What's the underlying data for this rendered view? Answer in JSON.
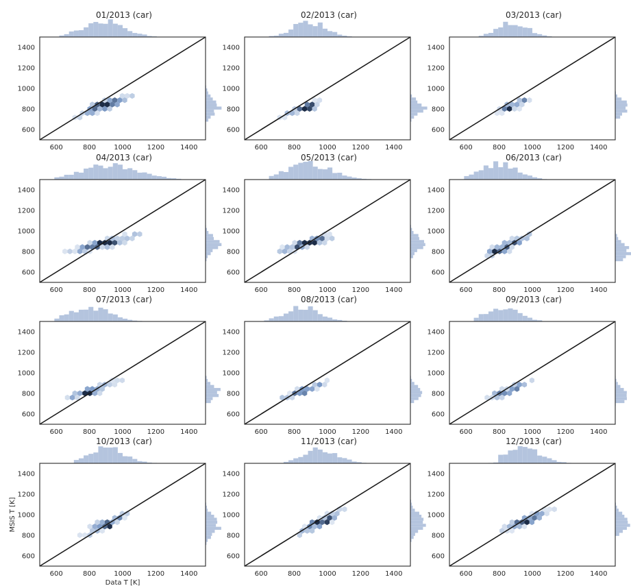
{
  "figure": {
    "xlabel": "Data T [K]",
    "ylabel": "MSIS T [K]",
    "colors": {
      "hist": "#b4c4de",
      "hex_light": "#dfe7f2",
      "hex_mid": "#7e9cc8",
      "hex_dark": "#1c2c47",
      "identity_line": "#1a1a1a",
      "frame": "#262626"
    }
  },
  "chart_data": [
    {
      "type": "hexbin",
      "title": "01/2013 (car)",
      "xlim": [
        500,
        1500
      ],
      "ylim": [
        500,
        1500
      ],
      "xticks": [
        600,
        800,
        1000,
        1200,
        1400
      ],
      "yticks": [
        600,
        800,
        1000,
        1200,
        1400
      ],
      "identity_line": true,
      "marginal_histograms": true,
      "center": [
        900,
        840
      ],
      "density_peak": [
        885,
        830
      ],
      "x_range": [
        650,
        1150
      ],
      "y_range": [
        720,
        1020
      ]
    },
    {
      "type": "hexbin",
      "title": "02/2013 (car)",
      "xlim": [
        500,
        1500
      ],
      "ylim": [
        500,
        1500
      ],
      "xticks": [
        600,
        800,
        1000,
        1200,
        1400
      ],
      "yticks": [
        600,
        800,
        1000,
        1200,
        1400
      ],
      "identity_line": true,
      "marginal_histograms": true,
      "center": [
        860,
        810
      ],
      "density_peak": [
        890,
        815
      ],
      "x_range": [
        700,
        1080
      ],
      "y_range": [
        730,
        950
      ]
    },
    {
      "type": "hexbin",
      "title": "03/2013 (car)",
      "xlim": [
        500,
        1500
      ],
      "ylim": [
        500,
        1500
      ],
      "xticks": [
        600,
        800,
        1000,
        1200,
        1400
      ],
      "yticks": [
        600,
        800,
        1000,
        1200,
        1400
      ],
      "identity_line": true,
      "marginal_histograms": true,
      "center": [
        880,
        840
      ],
      "density_peak": [
        880,
        815
      ],
      "x_range": [
        730,
        1080
      ],
      "y_range": [
        740,
        980
      ]
    },
    {
      "type": "hexbin",
      "title": "04/2013 (car)",
      "xlim": [
        500,
        1500
      ],
      "ylim": [
        500,
        1500
      ],
      "xticks": [
        600,
        800,
        1000,
        1200,
        1400
      ],
      "yticks": [
        600,
        800,
        1000,
        1200,
        1400
      ],
      "identity_line": true,
      "marginal_histograms": true,
      "center": [
        880,
        880
      ],
      "density_peak": [
        930,
        870
      ],
      "x_range": [
        620,
        1280
      ],
      "y_range": [
        760,
        1030
      ]
    },
    {
      "type": "hexbin",
      "title": "05/2013 (car)",
      "xlim": [
        500,
        1500
      ],
      "ylim": [
        500,
        1500
      ],
      "xticks": [
        600,
        800,
        1000,
        1200,
        1400
      ],
      "yticks": [
        600,
        800,
        1000,
        1200,
        1400
      ],
      "identity_line": true,
      "marginal_histograms": true,
      "center": [
        880,
        880
      ],
      "density_peak": [
        890,
        875
      ],
      "x_range": [
        700,
        1250
      ],
      "y_range": [
        780,
        1050
      ]
    },
    {
      "type": "hexbin",
      "title": "06/2013 (car)",
      "xlim": [
        500,
        1500
      ],
      "ylim": [
        500,
        1500
      ],
      "xticks": [
        600,
        800,
        1000,
        1200,
        1400
      ],
      "yticks": [
        600,
        800,
        1000,
        1200,
        1400
      ],
      "identity_line": true,
      "marginal_histograms": true,
      "center": [
        850,
        860
      ],
      "density_peak": [
        800,
        800
      ],
      "x_range": [
        640,
        1070
      ],
      "y_range": [
        740,
        1040
      ]
    },
    {
      "type": "hexbin",
      "title": "07/2013 (car)",
      "xlim": [
        500,
        1500
      ],
      "ylim": [
        500,
        1500
      ],
      "xticks": [
        600,
        800,
        1000,
        1200,
        1400
      ],
      "yticks": [
        600,
        800,
        1000,
        1200,
        1400
      ],
      "identity_line": true,
      "marginal_histograms": true,
      "center": [
        820,
        830
      ],
      "density_peak": [
        800,
        810
      ],
      "x_range": [
        620,
        1080
      ],
      "y_range": [
        740,
        990
      ]
    },
    {
      "type": "hexbin",
      "title": "08/2013 (car)",
      "xlim": [
        500,
        1500
      ],
      "ylim": [
        500,
        1500
      ],
      "xticks": [
        600,
        800,
        1000,
        1200,
        1400
      ],
      "yticks": [
        600,
        800,
        1000,
        1200,
        1400
      ],
      "identity_line": true,
      "marginal_histograms": true,
      "center": [
        860,
        830
      ],
      "density_peak": [
        850,
        815
      ],
      "x_range": [
        660,
        1060
      ],
      "y_range": [
        750,
        970
      ]
    },
    {
      "type": "hexbin",
      "title": "09/2013 (car)",
      "xlim": [
        500,
        1500
      ],
      "ylim": [
        500,
        1500
      ],
      "xticks": [
        600,
        800,
        1000,
        1200,
        1400
      ],
      "yticks": [
        600,
        800,
        1000,
        1200,
        1400
      ],
      "identity_line": true,
      "marginal_histograms": true,
      "center": [
        860,
        830
      ],
      "density_peak": [
        820,
        790
      ],
      "x_range": [
        700,
        1080
      ],
      "y_range": [
        740,
        990
      ]
    },
    {
      "type": "hexbin",
      "title": "10/2013 (car)",
      "xlim": [
        500,
        1500
      ],
      "ylim": [
        500,
        1500
      ],
      "xticks": [
        600,
        800,
        1000,
        1200,
        1400
      ],
      "yticks": [
        600,
        800,
        1000,
        1200,
        1400
      ],
      "identity_line": true,
      "marginal_histograms": true,
      "center": [
        900,
        910
      ],
      "density_peak": [
        900,
        900
      ],
      "x_range": [
        750,
        1180
      ],
      "y_range": [
        760,
        1080
      ]
    },
    {
      "type": "hexbin",
      "title": "11/2013 (car)",
      "xlim": [
        500,
        1500
      ],
      "ylim": [
        500,
        1500
      ],
      "xticks": [
        600,
        800,
        1000,
        1200,
        1400
      ],
      "yticks": [
        600,
        800,
        1000,
        1200,
        1400
      ],
      "identity_line": true,
      "marginal_histograms": true,
      "center": [
        960,
        930
      ],
      "density_peak": [
        960,
        925
      ],
      "x_range": [
        780,
        1180
      ],
      "y_range": [
        780,
        1110
      ]
    },
    {
      "type": "hexbin",
      "title": "12/2013 (car)",
      "xlim": [
        500,
        1500
      ],
      "ylim": [
        500,
        1500
      ],
      "xticks": [
        600,
        800,
        1000,
        1200,
        1400
      ],
      "yticks": [
        600,
        800,
        1000,
        1200,
        1400
      ],
      "identity_line": true,
      "marginal_histograms": true,
      "center": [
        960,
        940
      ],
      "density_peak": [
        940,
        920
      ],
      "x_range": [
        820,
        1250
      ],
      "y_range": [
        830,
        1120
      ]
    }
  ]
}
